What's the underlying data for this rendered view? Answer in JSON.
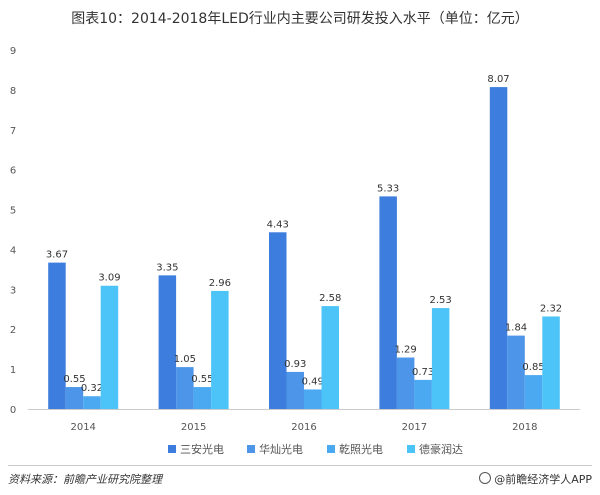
{
  "chart_data": {
    "type": "bar",
    "title": "图表10：2014-2018年LED行业内主要公司研发投入水平（单位：亿元）",
    "categories": [
      "2014",
      "2015",
      "2016",
      "2017",
      "2018"
    ],
    "series": [
      {
        "name": "三安光电",
        "color": "#3c7ddd",
        "values": [
          3.67,
          3.35,
          4.43,
          5.33,
          8.07
        ]
      },
      {
        "name": "华灿光电",
        "color": "#4c95e8",
        "values": [
          0.55,
          1.05,
          0.93,
          1.29,
          1.84
        ]
      },
      {
        "name": "乾照光电",
        "color": "#4aa9f0",
        "values": [
          0.32,
          0.55,
          0.49,
          0.73,
          0.85
        ]
      },
      {
        "name": "德豪润达",
        "color": "#4dc4f7",
        "values": [
          3.09,
          2.96,
          2.58,
          2.53,
          2.32
        ]
      }
    ],
    "yticks": [
      0,
      1,
      2,
      3,
      4,
      5,
      6,
      7,
      8,
      9
    ],
    "ylim": [
      0,
      9
    ],
    "grid": false,
    "legend": "bottom"
  },
  "footer": {
    "source": "资料来源：前瞻产业研究院整理",
    "brand": "@前瞻经济学人APP"
  }
}
